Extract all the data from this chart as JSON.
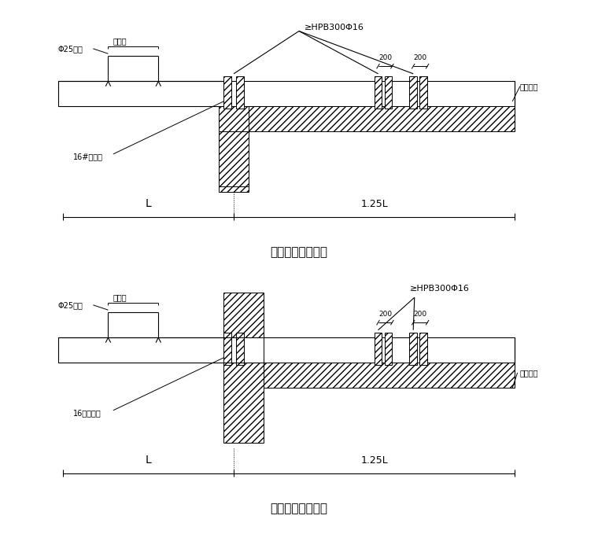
{
  "bg_color": "#ffffff",
  "title1": "悬挑钢梁楼面构造",
  "title2": "悬挑钢梁穿墙构造",
  "label_hpb": "≥HPB300Φ16",
  "label_phi25": "Φ25钢筋",
  "label_beam_width": "同梁宽",
  "label_i16_1": "16#工字钢",
  "label_i16_2": "16号工字钢",
  "label_L": "L",
  "label_125L": "1.25L",
  "label_200": "200",
  "label_mujian": "木楔塞紧"
}
